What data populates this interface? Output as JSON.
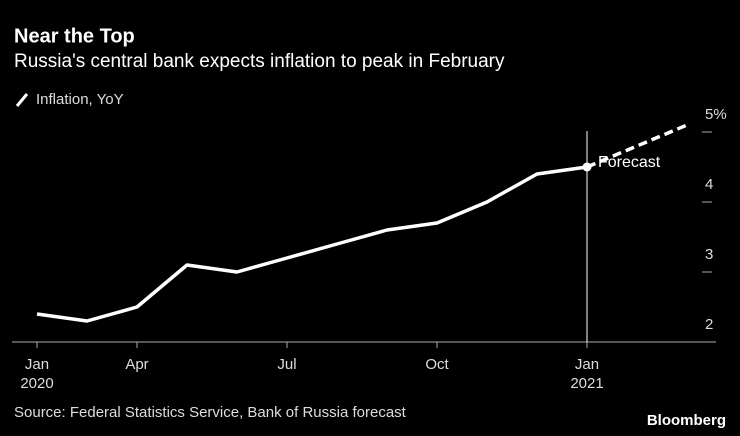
{
  "chart_data": {
    "type": "line",
    "title": "Near the Top",
    "subtitle": "Russia's central bank expects inflation to peak in February",
    "categories": [
      "Jan",
      null,
      "Apr",
      null,
      null,
      "Jul",
      null,
      null,
      "Oct",
      null,
      null,
      "Jan",
      null,
      null
    ],
    "category_years": [
      "2020",
      null,
      null,
      null,
      null,
      null,
      null,
      null,
      null,
      null,
      null,
      "2021",
      null,
      null
    ],
    "series": [
      {
        "name": "Inflation, YoY",
        "color": "#ffffff",
        "values": [
          2.4,
          2.3,
          2.5,
          3.1,
          3.0,
          3.2,
          3.4,
          3.6,
          3.7,
          4.0,
          4.4,
          4.5,
          null,
          null
        ]
      },
      {
        "color": "#ffffff",
        "dashed": true,
        "values": [
          null,
          null,
          null,
          null,
          null,
          null,
          null,
          null,
          null,
          null,
          null,
          4.5,
          4.8,
          5.1
        ]
      }
    ],
    "ylim": [
      2,
      5.3
    ],
    "yticks": [
      2,
      3,
      4,
      {
        "value": 5,
        "label": "5%"
      }
    ],
    "annotation": "Forecast",
    "source": "Source: Federal Statistics Service, Bank of Russia forecast",
    "brand": "Bloomberg"
  }
}
